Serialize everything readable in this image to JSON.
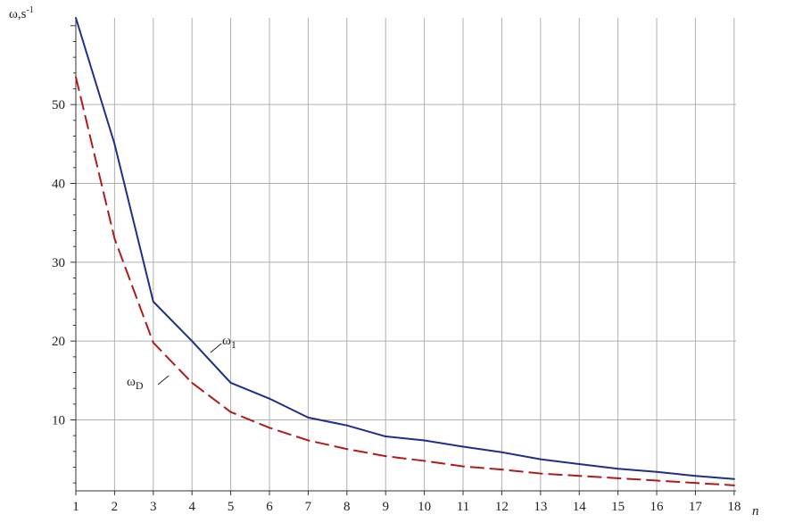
{
  "chart_data": {
    "type": "line",
    "x": [
      1,
      2,
      3,
      4,
      5,
      6,
      7,
      8,
      9,
      10,
      11,
      12,
      13,
      14,
      15,
      16,
      17,
      18
    ],
    "series": [
      {
        "name": "ω1",
        "label_main": "ω",
        "label_sub": "1",
        "color": "#1f2f8a",
        "style": "solid",
        "values": [
          61,
          45,
          25,
          20,
          14.7,
          12.7,
          10.3,
          9.3,
          7.9,
          7.4,
          6.6,
          5.9,
          5.0,
          4.4,
          3.8,
          3.4,
          2.9,
          2.5
        ]
      },
      {
        "name": "ωD",
        "label_main": "ω",
        "label_sub": "D",
        "color": "#b01c1c",
        "style": "dashed",
        "values": [
          53.5,
          33,
          19.8,
          14.7,
          11,
          9,
          7.4,
          6.3,
          5.4,
          4.8,
          4.1,
          3.7,
          3.2,
          2.9,
          2.6,
          2.3,
          2.0,
          1.7
        ]
      }
    ],
    "xlabel": "n",
    "ylabel_main": "ω,s",
    "ylabel_sup": "-1",
    "x_ticks": [
      1,
      2,
      3,
      4,
      5,
      6,
      7,
      8,
      9,
      10,
      11,
      12,
      13,
      14,
      15,
      16,
      17,
      18
    ],
    "y_ticks": [
      10,
      20,
      30,
      40,
      50
    ],
    "xlim": [
      1,
      18.05
    ],
    "ylim": [
      1,
      61
    ],
    "grid": true
  }
}
